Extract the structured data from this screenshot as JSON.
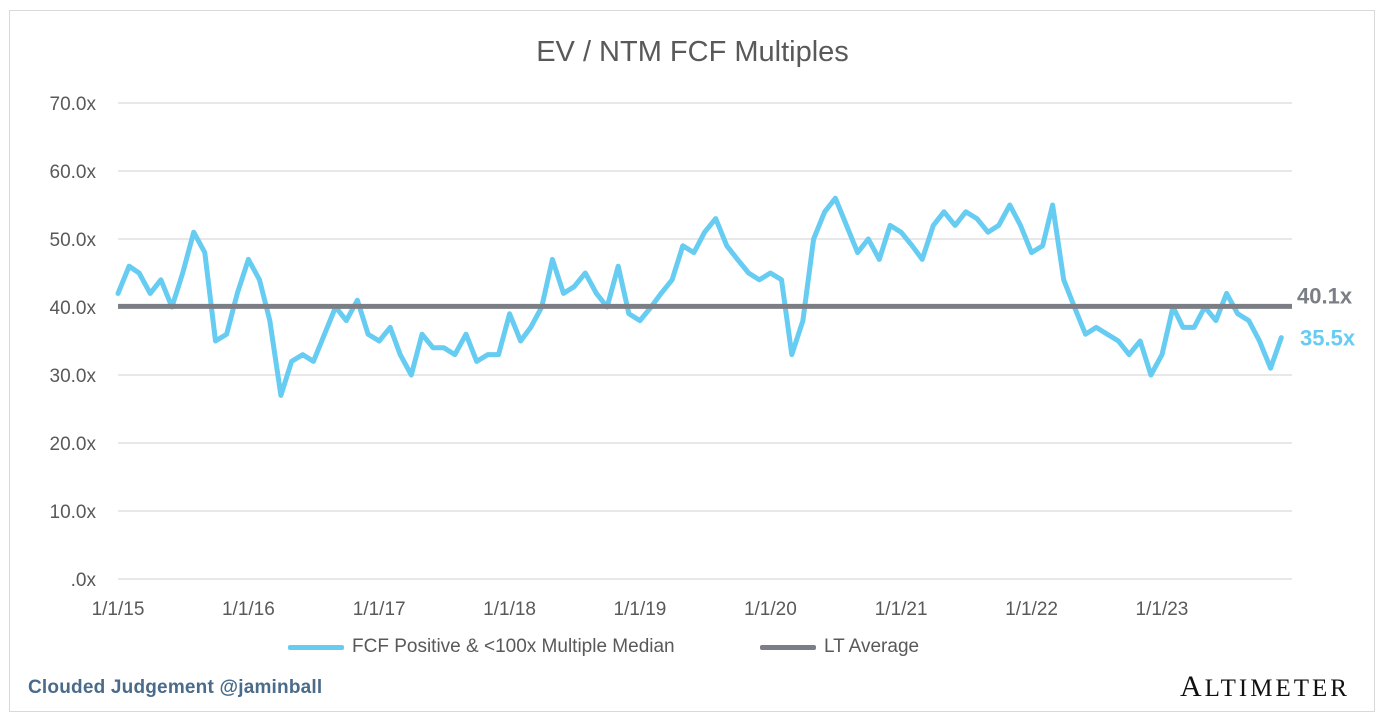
{
  "credit": "Clouded Judgement @jaminball",
  "brand": "Altimeter",
  "colors": {
    "series": "#66ccf2",
    "average": "#7b7f85",
    "grid": "#d9d9d9",
    "text": "#595959"
  },
  "chart_data": {
    "type": "line",
    "title": "EV / NTM FCF Multiples",
    "xlabel": "",
    "ylabel": "",
    "ylim": [
      0,
      70
    ],
    "y_ticks": [
      ".0x",
      "10.0x",
      "20.0x",
      "30.0x",
      "40.0x",
      "50.0x",
      "60.0x",
      "70.0x"
    ],
    "x_ticks": [
      "1/1/15",
      "1/1/16",
      "1/1/17",
      "1/1/18",
      "1/1/19",
      "1/1/20",
      "1/1/21",
      "1/1/22",
      "1/1/23"
    ],
    "xlim": [
      "2015-01-01",
      "2023-12-31"
    ],
    "grid": true,
    "legend_position": "bottom",
    "series": [
      {
        "name": "FCF Positive & <100x Multiple Median",
        "color": "#66ccf2",
        "end_label": "35.5x",
        "points": [
          [
            "2015-01-01",
            42
          ],
          [
            "2015-02-01",
            46
          ],
          [
            "2015-03-01",
            45
          ],
          [
            "2015-04-01",
            42
          ],
          [
            "2015-05-01",
            44
          ],
          [
            "2015-06-01",
            40
          ],
          [
            "2015-07-01",
            45
          ],
          [
            "2015-08-01",
            51
          ],
          [
            "2015-09-01",
            48
          ],
          [
            "2015-10-01",
            35
          ],
          [
            "2015-11-01",
            36
          ],
          [
            "2015-12-01",
            42
          ],
          [
            "2016-01-01",
            47
          ],
          [
            "2016-02-01",
            44
          ],
          [
            "2016-03-01",
            38
          ],
          [
            "2016-04-01",
            27
          ],
          [
            "2016-05-01",
            32
          ],
          [
            "2016-06-01",
            33
          ],
          [
            "2016-07-01",
            32
          ],
          [
            "2016-08-01",
            36
          ],
          [
            "2016-09-01",
            40
          ],
          [
            "2016-10-01",
            38
          ],
          [
            "2016-11-01",
            41
          ],
          [
            "2016-12-01",
            36
          ],
          [
            "2017-01-01",
            35
          ],
          [
            "2017-02-01",
            37
          ],
          [
            "2017-03-01",
            33
          ],
          [
            "2017-04-01",
            30
          ],
          [
            "2017-05-01",
            36
          ],
          [
            "2017-06-01",
            34
          ],
          [
            "2017-07-01",
            34
          ],
          [
            "2017-08-01",
            33
          ],
          [
            "2017-09-01",
            36
          ],
          [
            "2017-10-01",
            32
          ],
          [
            "2017-11-01",
            33
          ],
          [
            "2017-12-01",
            33
          ],
          [
            "2018-01-01",
            39
          ],
          [
            "2018-02-01",
            35
          ],
          [
            "2018-03-01",
            37
          ],
          [
            "2018-04-01",
            40
          ],
          [
            "2018-05-01",
            47
          ],
          [
            "2018-06-01",
            42
          ],
          [
            "2018-07-01",
            43
          ],
          [
            "2018-08-01",
            45
          ],
          [
            "2018-09-01",
            42
          ],
          [
            "2018-10-01",
            40
          ],
          [
            "2018-11-01",
            46
          ],
          [
            "2018-12-01",
            39
          ],
          [
            "2019-01-01",
            38
          ],
          [
            "2019-02-01",
            40
          ],
          [
            "2019-03-01",
            42
          ],
          [
            "2019-04-01",
            44
          ],
          [
            "2019-05-01",
            49
          ],
          [
            "2019-06-01",
            48
          ],
          [
            "2019-07-01",
            51
          ],
          [
            "2019-08-01",
            53
          ],
          [
            "2019-09-01",
            49
          ],
          [
            "2019-10-01",
            47
          ],
          [
            "2019-11-01",
            45
          ],
          [
            "2019-12-01",
            44
          ],
          [
            "2020-01-01",
            45
          ],
          [
            "2020-02-01",
            44
          ],
          [
            "2020-03-01",
            33
          ],
          [
            "2020-04-01",
            38
          ],
          [
            "2020-05-01",
            50
          ],
          [
            "2020-06-01",
            54
          ],
          [
            "2020-07-01",
            56
          ],
          [
            "2020-08-01",
            52
          ],
          [
            "2020-09-01",
            48
          ],
          [
            "2020-10-01",
            50
          ],
          [
            "2020-11-01",
            47
          ],
          [
            "2020-12-01",
            52
          ],
          [
            "2021-01-01",
            51
          ],
          [
            "2021-02-01",
            49
          ],
          [
            "2021-03-01",
            47
          ],
          [
            "2021-04-01",
            52
          ],
          [
            "2021-05-01",
            54
          ],
          [
            "2021-06-01",
            52
          ],
          [
            "2021-07-01",
            54
          ],
          [
            "2021-08-01",
            53
          ],
          [
            "2021-09-01",
            51
          ],
          [
            "2021-10-01",
            52
          ],
          [
            "2021-11-01",
            55
          ],
          [
            "2021-12-01",
            52
          ],
          [
            "2022-01-01",
            48
          ],
          [
            "2022-02-01",
            49
          ],
          [
            "2022-03-01",
            55
          ],
          [
            "2022-04-01",
            44
          ],
          [
            "2022-05-01",
            40
          ],
          [
            "2022-06-01",
            36
          ],
          [
            "2022-07-01",
            37
          ],
          [
            "2022-08-01",
            36
          ],
          [
            "2022-09-01",
            35
          ],
          [
            "2022-10-01",
            33
          ],
          [
            "2022-11-01",
            35
          ],
          [
            "2022-12-01",
            30
          ],
          [
            "2023-01-01",
            33
          ],
          [
            "2023-02-01",
            40
          ],
          [
            "2023-03-01",
            37
          ],
          [
            "2023-04-01",
            37
          ],
          [
            "2023-05-01",
            40
          ],
          [
            "2023-06-01",
            38
          ],
          [
            "2023-07-01",
            42
          ],
          [
            "2023-08-01",
            39
          ],
          [
            "2023-09-01",
            38
          ],
          [
            "2023-10-01",
            35
          ],
          [
            "2023-11-01",
            31
          ],
          [
            "2023-12-01",
            35.5
          ]
        ]
      },
      {
        "name": "LT Average",
        "color": "#7b7f85",
        "value": 40.1,
        "end_label": "40.1x"
      }
    ]
  }
}
